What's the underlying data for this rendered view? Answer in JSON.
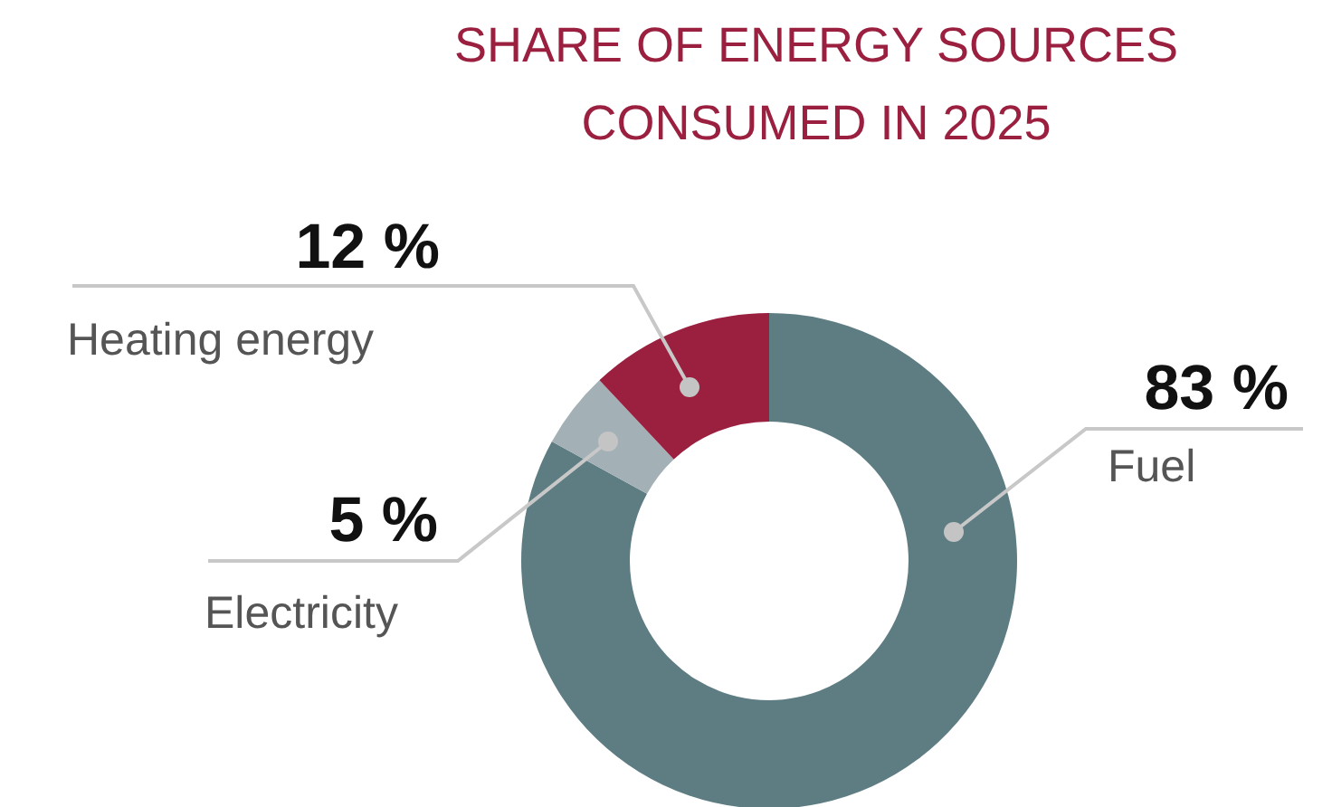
{
  "chart_data": {
    "type": "donut",
    "title": "SHARE OF ENERGY SOURCES\nCONSUMED IN 2025",
    "categories": [
      "Fuel",
      "Electricity",
      "Heating energy"
    ],
    "values": [
      83,
      5,
      12
    ],
    "colors": [
      "#5e7d83",
      "#a3b1b6",
      "#9b2040"
    ],
    "value_labels": [
      "83 %",
      "5 %",
      "12 %"
    ]
  }
}
